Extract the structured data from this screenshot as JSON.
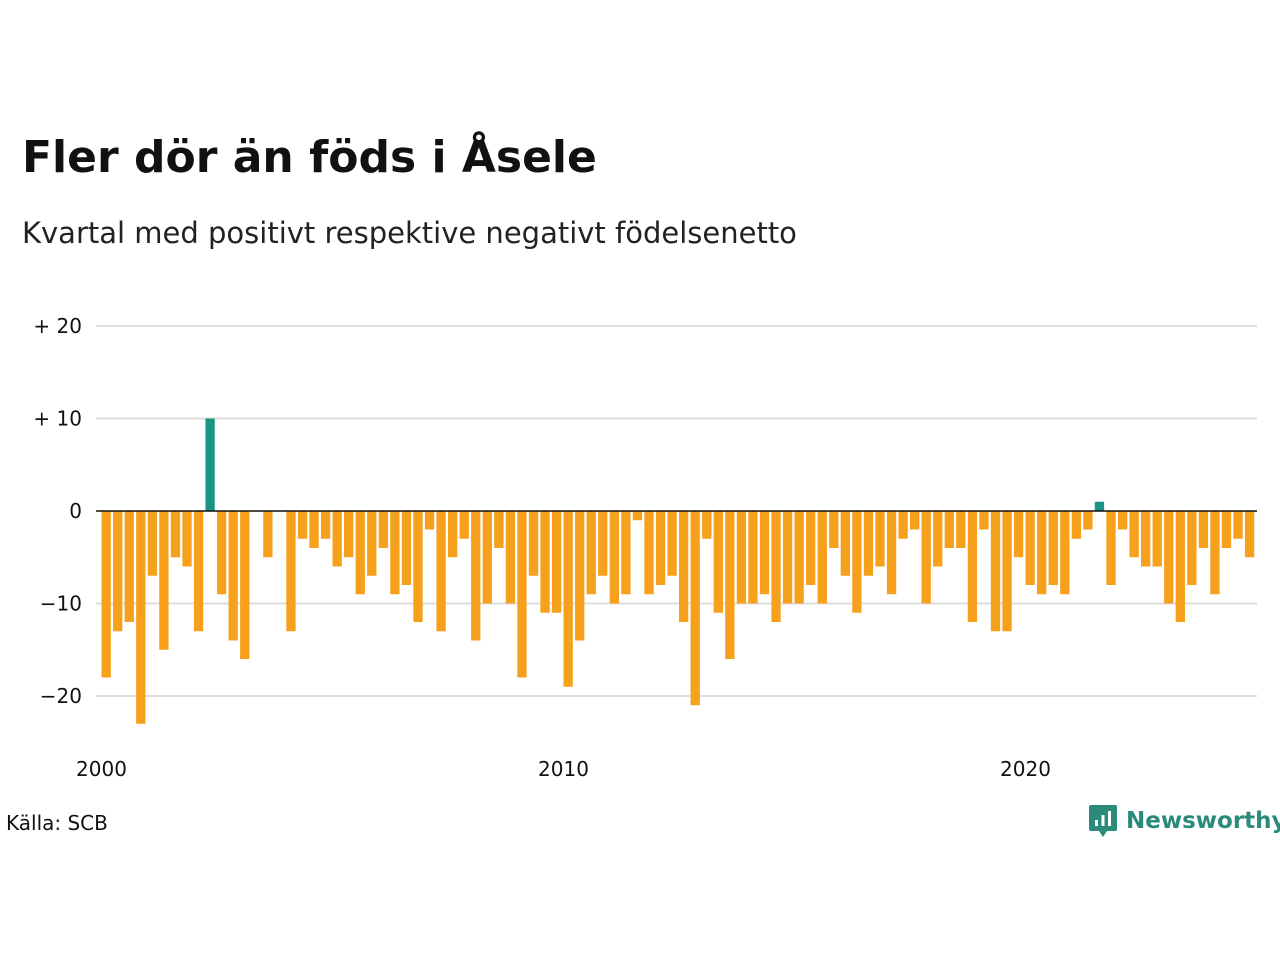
{
  "chart_data": {
    "type": "bar",
    "title": "Fler dör än föds i Åsele",
    "subtitle": "Kvartal med positivt respektive negativt födelsenetto",
    "y_ticks": [
      {
        "value": 20,
        "label": "+ 20"
      },
      {
        "value": 10,
        "label": "+ 10"
      },
      {
        "value": 0,
        "label": "0"
      },
      {
        "value": -10,
        "label": "−10"
      },
      {
        "value": -20,
        "label": "−20"
      }
    ],
    "x_ticks": [
      {
        "value": 2000,
        "label": "2000"
      },
      {
        "value": 2010,
        "label": "2010"
      },
      {
        "value": 2020,
        "label": "2020"
      }
    ],
    "ylim": [
      -25,
      20
    ],
    "x_start": 2000,
    "periods_per_year": 4,
    "grid": true,
    "positive_color": "#1a9584",
    "negative_color": "#f7a01c",
    "values": [
      -18,
      -13,
      -12,
      -23,
      -7,
      -15,
      -5,
      -6,
      -13,
      10,
      -9,
      -14,
      -16,
      0,
      -5,
      0,
      -13,
      -3,
      -4,
      -3,
      -6,
      -5,
      -9,
      -7,
      -4,
      -9,
      -8,
      -12,
      -2,
      -13,
      -5,
      -3,
      -14,
      -10,
      -4,
      -10,
      -18,
      -7,
      -11,
      -11,
      -19,
      -14,
      -9,
      -7,
      -10,
      -9,
      -1,
      -9,
      -8,
      -7,
      -12,
      -21,
      -3,
      -11,
      -16,
      -10,
      -10,
      -9,
      -12,
      -10,
      -10,
      -8,
      -10,
      -4,
      -7,
      -11,
      -7,
      -6,
      -9,
      -3,
      -2,
      -10,
      -6,
      -4,
      -4,
      -12,
      -2,
      -13,
      -13,
      -5,
      -8,
      -9,
      -8,
      -9,
      -3,
      -2,
      1,
      -8,
      -2,
      -5,
      -6,
      -6,
      -10,
      -12,
      -8,
      -4,
      -9,
      -4,
      -3,
      -5
    ]
  },
  "source": "Källa: SCB",
  "brand": {
    "name": "Newsworthy",
    "icon": "newsworthy-logo-icon",
    "color": "#2a8a7b"
  }
}
